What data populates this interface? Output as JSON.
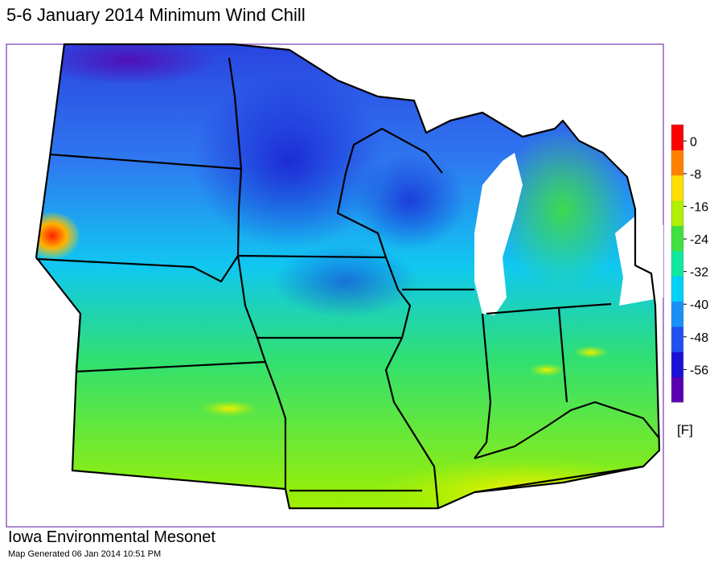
{
  "title": "5-6 January 2014 Minimum Wind Chill",
  "colorbar": {
    "range": [
      -64,
      4
    ],
    "ticks": [
      0,
      -8,
      -16,
      -24,
      -32,
      -40,
      -48,
      -56
    ],
    "colors": [
      "#5a00b0",
      "#1a10d8",
      "#2050f0",
      "#1890f8",
      "#00d0f8",
      "#10e8a0",
      "#40e040",
      "#b0f000",
      "#ffe000",
      "#ff8000",
      "#ff0000"
    ],
    "unit": "[F]"
  },
  "footer": {
    "name": "Iowa Environmental Mesonet",
    "generated": "Map Generated 06 Jan 2014 10:51 PM"
  }
}
